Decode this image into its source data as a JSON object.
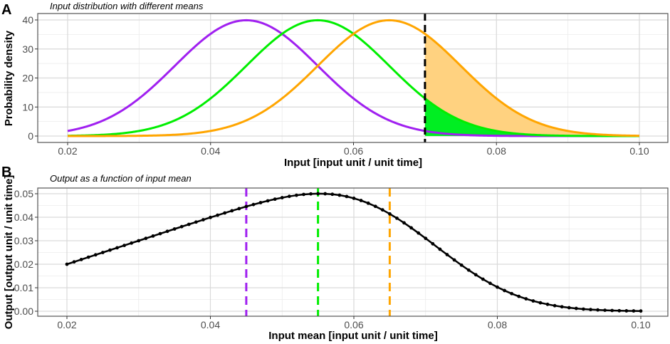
{
  "chart_data": [
    {
      "panel_label": "A",
      "type": "line",
      "title": "Input distribution with different means",
      "xlabel": "Input [input unit / unit time]",
      "ylabel": "Probability density",
      "xlim": [
        0.02,
        0.1
      ],
      "ylim": [
        0,
        40
      ],
      "xticks": [
        "0.02",
        "0.04",
        "0.06",
        "0.08",
        "0.10"
      ],
      "yticks": [
        "0",
        "10",
        "20",
        "30",
        "40"
      ],
      "grid": true,
      "distribution": "normal",
      "series": [
        {
          "mean": 0.045,
          "sd": 0.01,
          "color": "#a020f0"
        },
        {
          "mean": 0.055,
          "sd": 0.01,
          "color": "#00ee00"
        },
        {
          "mean": 0.065,
          "sd": 0.01,
          "color": "#ffa500"
        }
      ],
      "threshold": {
        "x": 0.07,
        "color": "#000000",
        "style": "dashed"
      },
      "shaded_tail_above_threshold": [
        {
          "mean": 0.065,
          "fill": "#ffd280"
        },
        {
          "mean": 0.055,
          "fill": "#00ee22"
        }
      ]
    },
    {
      "panel_label": "B",
      "type": "line",
      "title": "Output as a function of input mean",
      "xlabel": "Input mean [input unit / unit time]",
      "ylabel": "Output [output unit / unit time]",
      "xlim": [
        0.02,
        0.1
      ],
      "ylim": [
        0,
        0.05
      ],
      "xticks": [
        "0.02",
        "0.04",
        "0.06",
        "0.08",
        "0.10"
      ],
      "yticks": [
        "0.00",
        "0.01",
        "0.02",
        "0.03",
        "0.04",
        "0.05"
      ],
      "grid": true,
      "markers": true,
      "color": "#000000",
      "x_start": 0.02,
      "x_step": 0.001,
      "values": [
        0.02,
        0.021,
        0.022,
        0.023,
        0.024,
        0.025,
        0.026,
        0.027,
        0.028,
        0.029,
        0.03,
        0.031,
        0.032,
        0.033,
        0.034,
        0.035,
        0.036,
        0.03697,
        0.03795,
        0.03893,
        0.0399,
        0.04086,
        0.04181,
        0.04275,
        0.04366,
        0.04455,
        0.0454,
        0.04621,
        0.04698,
        0.04769,
        0.04832,
        0.04888,
        0.04934,
        0.0497,
        0.04993,
        0.05003,
        0.04998,
        0.04977,
        0.04938,
        0.04882,
        0.04806,
        0.04711,
        0.04597,
        0.04463,
        0.04312,
        0.04142,
        0.03958,
        0.03759,
        0.03548,
        0.03328,
        0.03101,
        0.0287,
        0.02638,
        0.02408,
        0.02182,
        0.01962,
        0.01751,
        0.01551,
        0.01363,
        0.01188,
        0.01026,
        0.00881,
        0.00749,
        0.00632,
        0.00529,
        0.00438,
        0.0036,
        0.00294,
        0.00237,
        0.0019,
        0.00151,
        0.00119,
        0.00092,
        0.00071,
        0.00055,
        0.00042,
        0.00031,
        0.00023,
        0.00017,
        0.00013,
        9e-05
      ],
      "vlines": [
        {
          "x": 0.045,
          "color": "#a020f0",
          "style": "dashed"
        },
        {
          "x": 0.055,
          "color": "#00ee00",
          "style": "dashed"
        },
        {
          "x": 0.065,
          "color": "#ffa500",
          "style": "dashed"
        }
      ]
    }
  ]
}
